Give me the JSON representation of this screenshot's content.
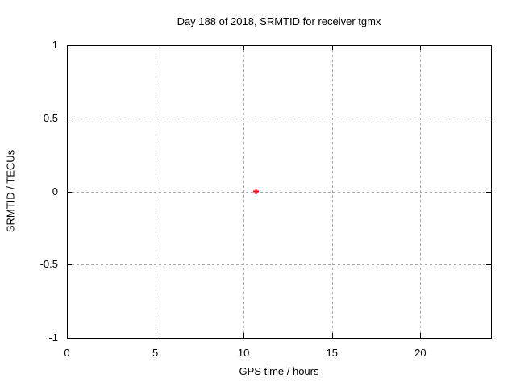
{
  "chart_data": {
    "type": "scatter",
    "title": "Day 188 of 2018, SRMTID for receiver tgmx",
    "xlabel": "GPS time / hours",
    "ylabel": "SRMTID / TECUs",
    "xlim": [
      0,
      24
    ],
    "ylim": [
      -1,
      1
    ],
    "grid": true,
    "grid_color": "#a8a8a8",
    "border_color": "#000000",
    "xticks": [
      {
        "value": 0,
        "label": "0"
      },
      {
        "value": 5,
        "label": "5"
      },
      {
        "value": 10,
        "label": "10"
      },
      {
        "value": 15,
        "label": "15"
      },
      {
        "value": 20,
        "label": "20"
      }
    ],
    "yticks": [
      {
        "value": -1,
        "label": "-1"
      },
      {
        "value": -0.5,
        "label": "-0.5"
      },
      {
        "value": 0,
        "label": "0"
      },
      {
        "value": 0.5,
        "label": "0.5"
      },
      {
        "value": 1,
        "label": "1"
      }
    ],
    "series": [
      {
        "name": "SRMTID",
        "marker": "plus",
        "color": "#ff0000",
        "points": [
          {
            "x": 10.7,
            "y": 0.0
          }
        ]
      }
    ]
  }
}
